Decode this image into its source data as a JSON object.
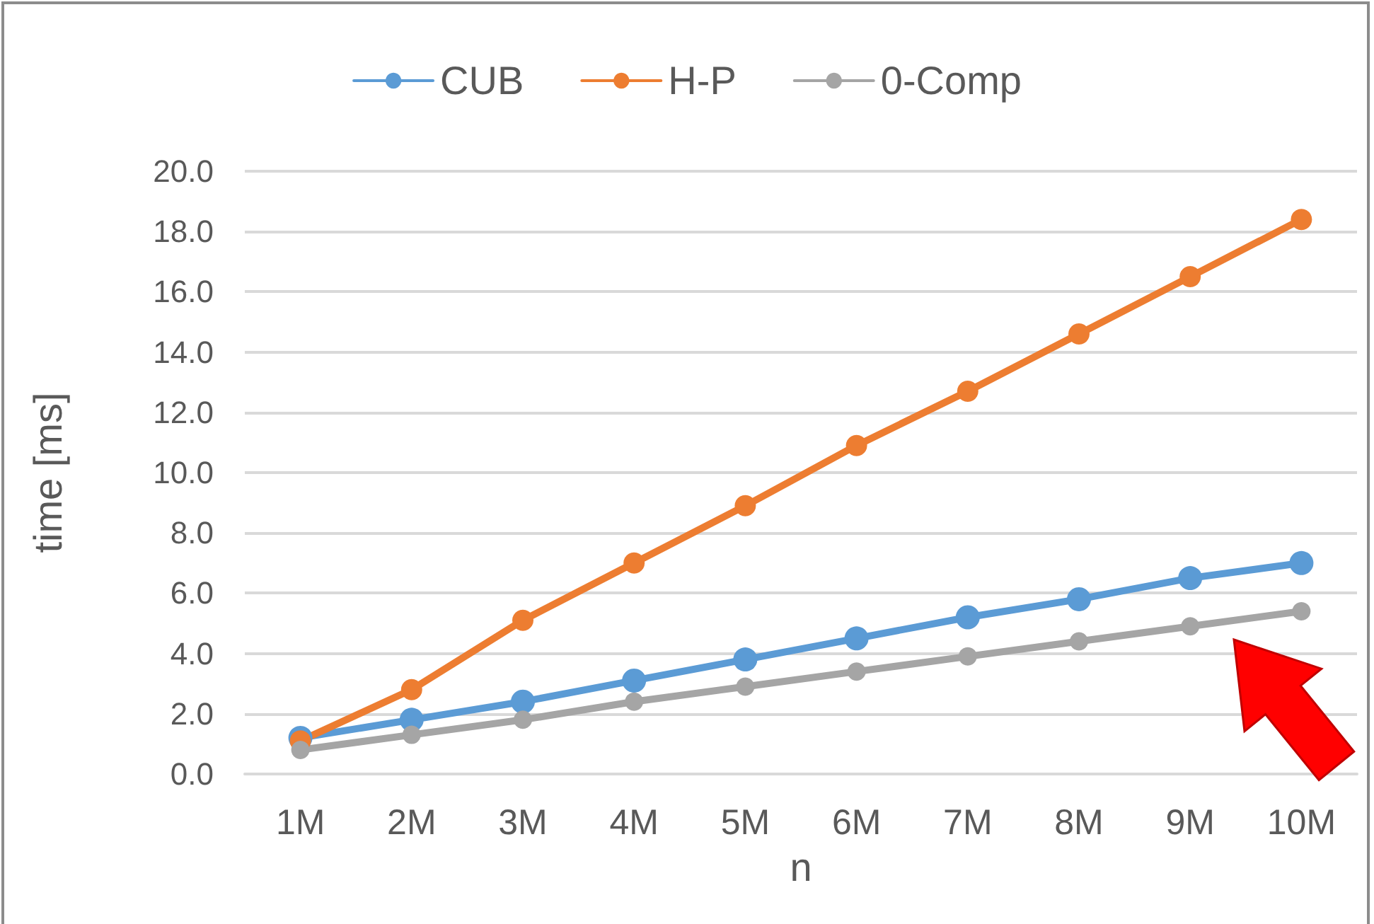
{
  "chart_data": {
    "type": "line",
    "xlabel": "n",
    "ylabel": "time [ms]",
    "categories": [
      "1M",
      "2M",
      "3M",
      "4M",
      "5M",
      "6M",
      "7M",
      "8M",
      "9M",
      "10M"
    ],
    "series": [
      {
        "name": "CUB",
        "color": "#5b9bd5",
        "values": [
          1.2,
          1.8,
          2.4,
          3.1,
          3.8,
          4.5,
          5.2,
          5.8,
          6.5,
          7.0
        ]
      },
      {
        "name": "H-P",
        "color": "#ed7d31",
        "values": [
          1.1,
          2.8,
          5.1,
          7.0,
          8.9,
          10.9,
          12.7,
          14.6,
          16.5,
          18.4
        ]
      },
      {
        "name": "0-Comp",
        "color": "#a5a5a5",
        "values": [
          0.8,
          1.3,
          1.8,
          2.4,
          2.9,
          3.4,
          3.9,
          4.4,
          4.9,
          5.4
        ]
      }
    ],
    "ylim": [
      0,
      20
    ],
    "yticks": [
      {
        "value": 0,
        "label": "0.0"
      },
      {
        "value": 2,
        "label": "2.0"
      },
      {
        "value": 4,
        "label": "4.0"
      },
      {
        "value": 6,
        "label": "6.0"
      },
      {
        "value": 8,
        "label": "8.0"
      },
      {
        "value": 10,
        "label": "10.0"
      },
      {
        "value": 12,
        "label": "12.0"
      },
      {
        "value": 14,
        "label": "14.0"
      },
      {
        "value": 16,
        "label": "16.0"
      },
      {
        "value": 18,
        "label": "18.0"
      },
      {
        "value": 20,
        "label": "20.0"
      }
    ],
    "grid": "y",
    "legend": "top",
    "marker": "circle",
    "line_style": "solid"
  }
}
